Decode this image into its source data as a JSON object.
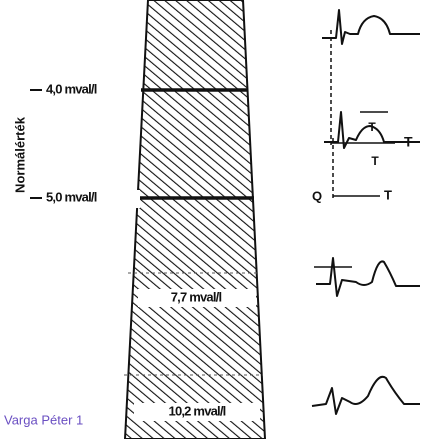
{
  "axis_label": "Normálérték",
  "levels": [
    {
      "label": "4,0 mval/l"
    },
    {
      "label": "5,0 mval/l"
    },
    {
      "label": "7,7 mval/l"
    },
    {
      "label": "10,2 mval/l"
    }
  ],
  "ecg": [
    {
      "labels": [
        "T",
        "T"
      ]
    },
    {
      "labels": [
        "T",
        "Q",
        "T"
      ]
    }
  ],
  "credit": "Varga Péter 1"
}
